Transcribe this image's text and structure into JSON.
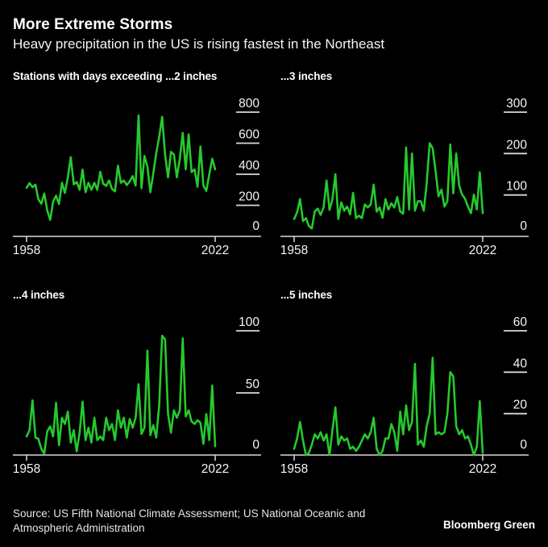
{
  "header": {
    "title": "More Extreme Storms",
    "subtitle": "Heavy precipitation in the US is rising fastest in the Northeast"
  },
  "footer": {
    "source": "Source: US Fifth National Climate Assessment; US National Oceanic and Atmospheric Administration",
    "brand": "Bloomberg Green"
  },
  "colors": {
    "background": "#000000",
    "line": "#26C92D",
    "axis": "#d9d9d9",
    "text": "#f5f5f5"
  },
  "chart_data": [
    {
      "type": "line",
      "title": "Stations with days exceeding ...2 inches",
      "x_label_start": "1958",
      "x_label_end": "2022",
      "x_range": [
        1958,
        2022
      ],
      "ylim": [
        0,
        800
      ],
      "yticks": [
        0,
        200,
        400,
        600,
        800
      ],
      "grid": "right-side tick labels only",
      "legend": "none",
      "series": [
        {
          "name": "Stations with days exceeding 2 inches",
          "values": [
            313,
            343,
            317,
            333,
            239,
            210,
            276,
            168,
            106,
            224,
            262,
            208,
            345,
            280,
            380,
            510,
            335,
            350,
            300,
            430,
            285,
            345,
            300,
            345,
            300,
            415,
            340,
            325,
            360,
            305,
            290,
            455,
            345,
            360,
            330,
            354,
            388,
            328,
            778,
            310,
            518,
            449,
            284,
            406,
            536,
            640,
            770,
            527,
            380,
            544,
            527,
            380,
            500,
            666,
            432,
            657,
            414,
            432,
            319,
            579,
            328,
            293,
            400,
            500,
            432
          ]
        }
      ]
    },
    {
      "type": "line",
      "title": "...3 inches",
      "x_label_start": "1958",
      "x_label_end": "2022",
      "x_range": [
        1958,
        2022
      ],
      "ylim": [
        0,
        300
      ],
      "yticks": [
        0,
        100,
        200,
        300
      ],
      "grid": "right-side tick labels only",
      "legend": "none",
      "series": [
        {
          "name": "Stations with days exceeding 3 inches",
          "values": [
            42,
            58,
            90,
            37,
            44,
            25,
            19,
            60,
            67,
            52,
            70,
            135,
            64,
            90,
            150,
            42,
            82,
            62,
            72,
            53,
            105,
            44,
            50,
            44,
            77,
            70,
            77,
            125,
            60,
            70,
            45,
            90,
            65,
            80,
            70,
            95,
            60,
            55,
            215,
            65,
            200,
            62,
            85,
            85,
            62,
            130,
            225,
            213,
            158,
            97,
            113,
            72,
            85,
            222,
            104,
            200,
            123,
            101,
            91,
            72,
            56,
            101,
            65,
            155,
            56
          ]
        }
      ]
    },
    {
      "type": "line",
      "title": "...4 inches",
      "x_label_start": "1958",
      "x_label_end": "2022",
      "x_range": [
        1958,
        2022
      ],
      "ylim": [
        0,
        100
      ],
      "yticks": [
        0,
        50,
        100
      ],
      "grid": "right-side tick labels only",
      "legend": "none",
      "series": [
        {
          "name": "Stations with days exceeding 4 inches",
          "values": [
            15,
            20,
            44,
            14,
            13,
            5,
            1,
            19,
            23,
            15,
            42,
            8,
            30,
            25,
            35,
            10,
            20,
            3,
            18,
            43,
            12,
            22,
            10,
            30,
            12,
            15,
            12,
            30,
            20,
            25,
            12,
            36,
            22,
            30,
            14,
            29,
            22,
            30,
            57,
            17,
            22,
            84,
            16,
            24,
            14,
            40,
            96,
            93,
            33,
            18,
            36,
            30,
            36,
            94,
            31,
            36,
            27,
            25,
            28,
            26,
            9,
            33,
            12,
            56,
            7
          ]
        }
      ]
    },
    {
      "type": "line",
      "title": "...5 inches",
      "x_label_start": "1958",
      "x_label_end": "2022",
      "x_range": [
        1958,
        2022
      ],
      "ylim": [
        0,
        60
      ],
      "yticks": [
        0,
        20,
        40,
        60
      ],
      "grid": "right-side tick labels only",
      "legend": "none",
      "series": [
        {
          "name": "Stations with days exceeding 5 inches",
          "values": [
            3,
            8,
            16,
            7,
            0,
            1,
            5,
            10,
            8,
            11,
            7,
            10,
            0,
            12,
            23,
            5,
            9,
            7,
            8,
            3,
            4,
            2,
            4,
            7,
            10,
            8,
            11,
            18,
            3,
            0,
            2,
            8,
            8,
            15,
            11,
            2,
            21,
            10,
            24,
            12,
            16,
            44,
            5,
            7,
            4,
            14,
            20,
            47,
            10,
            11,
            10,
            11,
            20,
            40,
            38,
            14,
            10,
            12,
            8,
            9,
            5,
            0,
            4,
            26,
            1
          ]
        }
      ]
    }
  ]
}
